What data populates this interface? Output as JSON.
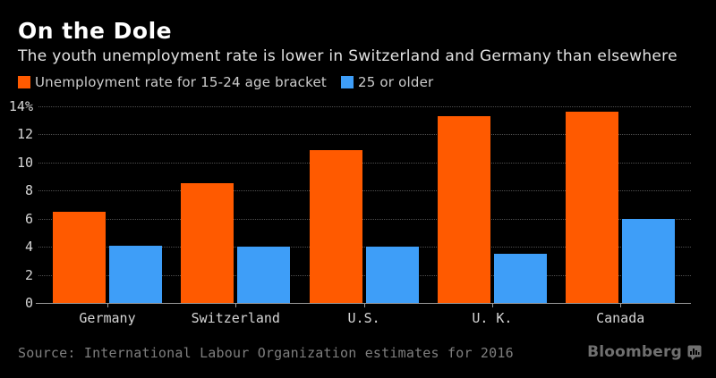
{
  "header": {
    "title": "On the Dole",
    "subtitle": "The youth unemployment rate is lower in Switzerland and Germany than elsewhere"
  },
  "legend": [
    {
      "label": "Unemployment rate for 15-24 age bracket",
      "color": "#ff5a00"
    },
    {
      "label": "25 or older",
      "color": "#3e9ef8"
    }
  ],
  "chart_data": {
    "type": "bar",
    "categories": [
      "Germany",
      "Switzerland",
      "U.S.",
      "U. K.",
      "Canada"
    ],
    "series": [
      {
        "name": "Unemployment rate for 15-24 age bracket",
        "color": "#ff5a00",
        "values": [
          6.5,
          8.5,
          10.9,
          13.3,
          13.6
        ]
      },
      {
        "name": "25 or older",
        "color": "#3e9ef8",
        "values": [
          4.1,
          4.0,
          4.0,
          3.5,
          6.0
        ]
      }
    ],
    "ylim": [
      0,
      14
    ],
    "yticks": [
      "14%",
      "12",
      "10",
      "8",
      "6",
      "4",
      "2",
      "0"
    ],
    "ytick_values": [
      14,
      12,
      10,
      8,
      6,
      4,
      2,
      0
    ],
    "grid": "horizontal-dotted",
    "legend_position": "top-left",
    "background": "#000000"
  },
  "footer": {
    "source": "Source: International Labour Organization estimates for 2016",
    "brand": "Bloomberg"
  }
}
